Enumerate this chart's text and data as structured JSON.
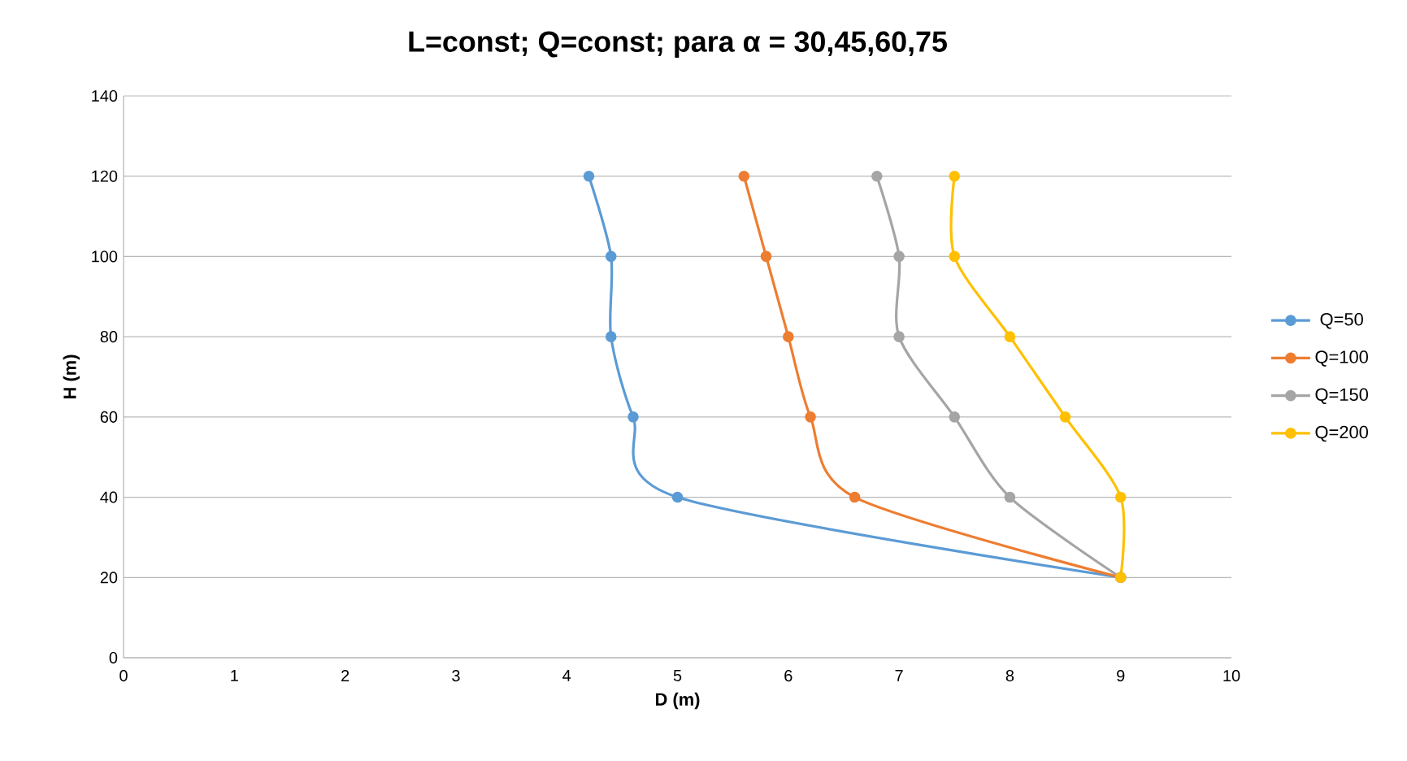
{
  "chart_data": {
    "type": "line",
    "title": "**L=const; Q=const;  para α = 30,45,60,75**",
    "xlabel": "D  (m)",
    "ylabel": "H (m)",
    "xlim": [
      0,
      10
    ],
    "xticks": [
      0,
      1,
      2,
      3,
      4,
      5,
      6,
      7,
      8,
      9,
      10
    ],
    "ylim": [
      0,
      140
    ],
    "yticks": [
      0,
      20,
      40,
      60,
      80,
      100,
      120,
      140
    ],
    "grid": "y",
    "legend": "right",
    "marker": "circle",
    "series": [
      {
        "name": "Q=50",
        "color": "#5b9bd5",
        "x": [
          4.2,
          4.4,
          4.4,
          4.6,
          5.0,
          9.0
        ],
        "values": [
          120,
          100,
          80,
          60,
          40,
          20
        ]
      },
      {
        "name": "Q=100",
        "color": "#ed7d31",
        "x": [
          5.6,
          5.8,
          6.0,
          6.2,
          6.6,
          9.0
        ],
        "values": [
          120,
          100,
          80,
          60,
          40,
          20
        ]
      },
      {
        "name": "Q=150",
        "color": "#a5a5a5",
        "x": [
          6.8,
          7.0,
          7.0,
          7.5,
          8.0,
          9.0
        ],
        "values": [
          120,
          100,
          80,
          60,
          40,
          20
        ]
      },
      {
        "name": "Q=200",
        "color": "#ffc000",
        "x": [
          7.5,
          7.5,
          8.0,
          8.5,
          9.0,
          9.0
        ],
        "values": [
          120,
          100,
          80,
          60,
          40,
          20
        ]
      }
    ]
  }
}
